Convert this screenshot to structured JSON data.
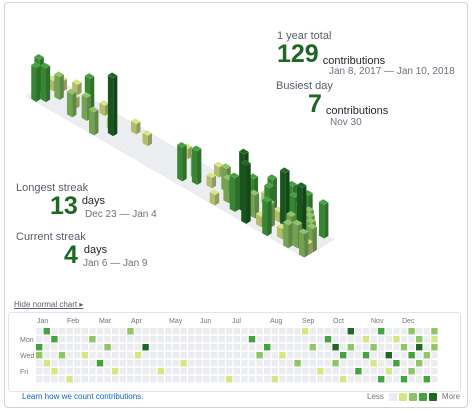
{
  "colors": {
    "level0": "#ebedf0",
    "level1": "#d6e685",
    "level2": "#8cc665",
    "level3": "#44a340",
    "level4": "#1e6823",
    "link": "#0366d6"
  },
  "total": {
    "label": "1 year total",
    "value": "129",
    "unit": "contributions",
    "range": "Jan 8, 2017 — Jan 10, 2018"
  },
  "busiest": {
    "label": "Busiest day",
    "value": "7",
    "unit": "contributions",
    "date": "Nov 30"
  },
  "longest": {
    "label": "Longest streak",
    "value": "13",
    "unit": "days",
    "range": "Dec 23 — Jan 4"
  },
  "current": {
    "label": "Current streak",
    "value": "4",
    "unit": "days",
    "range": "Jan 6 — Jan 9"
  },
  "toggle_label": "Hide normal chart ▸",
  "months": [
    "Jan",
    "Feb",
    "Mar",
    "Apr",
    "May",
    "Jun",
    "Jul",
    "Aug",
    "Sep",
    "Oct",
    "Nov",
    "Dec"
  ],
  "days": [
    "Mon",
    "Wed",
    "Fri"
  ],
  "learn_link": "Learn how we count contributions.",
  "legend": {
    "less": "Less",
    "more": "More"
  },
  "weeks": 53,
  "contributions": [
    {
      "w": 0,
      "d": 2,
      "l": 3
    },
    {
      "w": 0,
      "d": 3,
      "l": 2
    },
    {
      "w": 1,
      "d": 0,
      "l": 3
    },
    {
      "w": 1,
      "d": 4,
      "l": 1
    },
    {
      "w": 2,
      "d": 1,
      "l": 3
    },
    {
      "w": 2,
      "d": 5,
      "l": 1
    },
    {
      "w": 3,
      "d": 3,
      "l": 2
    },
    {
      "w": 4,
      "d": 6,
      "l": 1
    },
    {
      "w": 6,
      "d": 3,
      "l": 1
    },
    {
      "w": 7,
      "d": 1,
      "l": 2
    },
    {
      "w": 8,
      "d": 4,
      "l": 3
    },
    {
      "w": 9,
      "d": 2,
      "l": 2
    },
    {
      "w": 10,
      "d": 5,
      "l": 1
    },
    {
      "w": 12,
      "d": 0,
      "l": 2
    },
    {
      "w": 13,
      "d": 3,
      "l": 1
    },
    {
      "w": 14,
      "d": 2,
      "l": 4
    },
    {
      "w": 16,
      "d": 5,
      "l": 1
    },
    {
      "w": 19,
      "d": 4,
      "l": 1
    },
    {
      "w": 25,
      "d": 6,
      "l": 1
    },
    {
      "w": 28,
      "d": 1,
      "l": 3
    },
    {
      "w": 29,
      "d": 3,
      "l": 2
    },
    {
      "w": 30,
      "d": 2,
      "l": 3
    },
    {
      "w": 31,
      "d": 6,
      "l": 1
    },
    {
      "w": 32,
      "d": 3,
      "l": 1
    },
    {
      "w": 34,
      "d": 4,
      "l": 2
    },
    {
      "w": 35,
      "d": 0,
      "l": 1
    },
    {
      "w": 36,
      "d": 2,
      "l": 2
    },
    {
      "w": 37,
      "d": 5,
      "l": 1
    },
    {
      "w": 38,
      "d": 1,
      "l": 3
    },
    {
      "w": 39,
      "d": 2,
      "l": 4
    },
    {
      "w": 39,
      "d": 4,
      "l": 2
    },
    {
      "w": 40,
      "d": 3,
      "l": 3
    },
    {
      "w": 40,
      "d": 6,
      "l": 1
    },
    {
      "w": 41,
      "d": 0,
      "l": 4
    },
    {
      "w": 41,
      "d": 2,
      "l": 2
    },
    {
      "w": 42,
      "d": 5,
      "l": 3
    },
    {
      "w": 43,
      "d": 1,
      "l": 1
    },
    {
      "w": 43,
      "d": 3,
      "l": 3
    },
    {
      "w": 44,
      "d": 2,
      "l": 2
    },
    {
      "w": 44,
      "d": 4,
      "l": 1
    },
    {
      "w": 45,
      "d": 0,
      "l": 3
    },
    {
      "w": 45,
      "d": 6,
      "l": 3
    },
    {
      "w": 46,
      "d": 3,
      "l": 4
    },
    {
      "w": 46,
      "d": 5,
      "l": 1
    },
    {
      "w": 47,
      "d": 1,
      "l": 1
    },
    {
      "w": 47,
      "d": 4,
      "l": 3
    },
    {
      "w": 48,
      "d": 2,
      "l": 2
    },
    {
      "w": 48,
      "d": 6,
      "l": 3
    },
    {
      "w": 49,
      "d": 0,
      "l": 2
    },
    {
      "w": 49,
      "d": 3,
      "l": 3
    },
    {
      "w": 49,
      "d": 5,
      "l": 2
    },
    {
      "w": 50,
      "d": 1,
      "l": 2
    },
    {
      "w": 50,
      "d": 2,
      "l": 4
    },
    {
      "w": 50,
      "d": 4,
      "l": 2
    },
    {
      "w": 51,
      "d": 3,
      "l": 2
    },
    {
      "w": 51,
      "d": 6,
      "l": 3
    },
    {
      "w": 52,
      "d": 0,
      "l": 2
    },
    {
      "w": 52,
      "d": 1,
      "l": 1
    },
    {
      "w": 52,
      "d": 2,
      "l": 2
    }
  ]
}
